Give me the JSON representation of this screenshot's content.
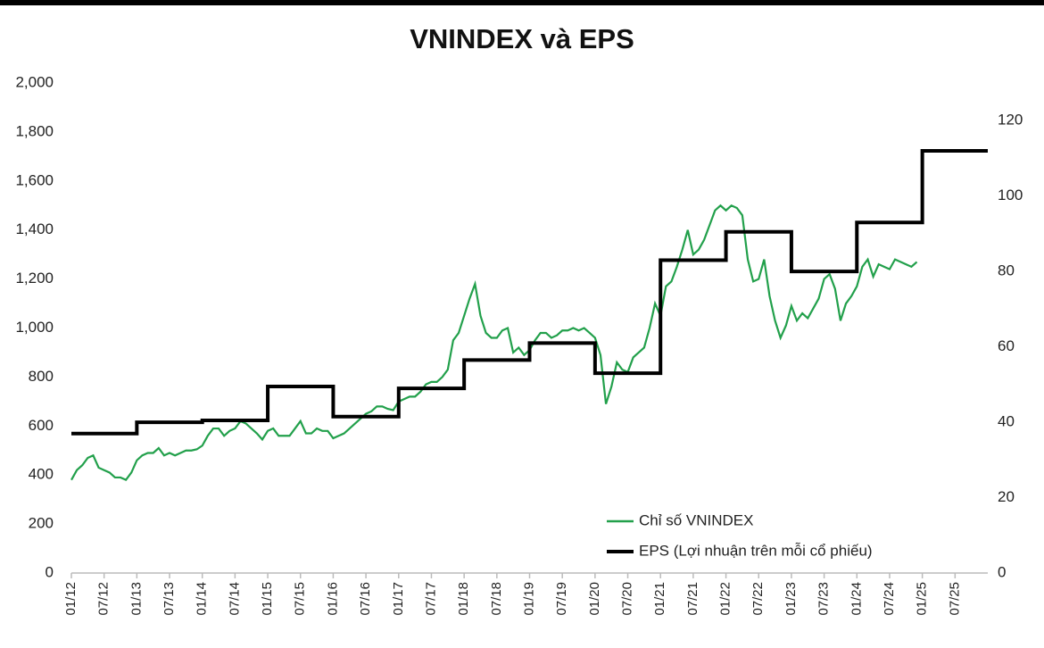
{
  "chart_data": {
    "type": "line",
    "title": "VNINDEX và EPS",
    "categories": [
      "01/12",
      null,
      null,
      null,
      null,
      null,
      "07/12",
      null,
      null,
      null,
      null,
      null,
      "01/13",
      null,
      null,
      null,
      null,
      null,
      "07/13",
      null,
      null,
      null,
      null,
      null,
      "01/14",
      null,
      null,
      null,
      null,
      null,
      "07/14",
      null,
      null,
      null,
      null,
      null,
      "01/15",
      null,
      null,
      null,
      null,
      null,
      "07/15",
      null,
      null,
      null,
      null,
      null,
      "01/16",
      null,
      null,
      null,
      null,
      null,
      "07/16",
      null,
      null,
      null,
      null,
      null,
      "01/17",
      null,
      null,
      null,
      null,
      null,
      "07/17",
      null,
      null,
      null,
      null,
      null,
      "01/18",
      null,
      null,
      null,
      null,
      null,
      "07/18",
      null,
      null,
      null,
      null,
      null,
      "01/19",
      null,
      null,
      null,
      null,
      null,
      "07/19",
      null,
      null,
      null,
      null,
      null,
      "01/20",
      null,
      null,
      null,
      null,
      null,
      "07/20",
      null,
      null,
      null,
      null,
      null,
      "01/21",
      null,
      null,
      null,
      null,
      null,
      "07/21",
      null,
      null,
      null,
      null,
      null,
      "01/22",
      null,
      null,
      null,
      null,
      null,
      "07/22",
      null,
      null,
      null,
      null,
      null,
      "01/23",
      null,
      null,
      null,
      null,
      null,
      "07/23",
      null,
      null,
      null,
      null,
      null,
      "01/24",
      null,
      null,
      null,
      null,
      null,
      "07/24",
      null,
      null,
      null,
      null,
      null,
      "01/25",
      null,
      null,
      null,
      null,
      null,
      "07/25",
      null,
      null,
      null,
      null,
      null,
      null
    ],
    "series": [
      {
        "name": "Chỉ số VNINDEX",
        "color": "#22a04b",
        "values": [
          380,
          420,
          440,
          470,
          480,
          430,
          420,
          410,
          390,
          390,
          380,
          410,
          460,
          480,
          490,
          490,
          510,
          480,
          490,
          480,
          490,
          500,
          500,
          505,
          520,
          560,
          590,
          590,
          560,
          580,
          590,
          620,
          610,
          590,
          570,
          545,
          580,
          590,
          560,
          560,
          560,
          590,
          620,
          570,
          570,
          590,
          580,
          580,
          550,
          560,
          570,
          590,
          610,
          630,
          650,
          660,
          680,
          680,
          670,
          665,
          700,
          710,
          720,
          720,
          740,
          770,
          780,
          780,
          800,
          830,
          950,
          980,
          1050,
          1120,
          1180,
          1050,
          980,
          960,
          960,
          990,
          1000,
          900,
          920,
          890,
          910,
          950,
          980,
          980,
          960,
          970,
          990,
          990,
          1000,
          990,
          1000,
          980,
          960,
          890,
          690,
          760,
          860,
          830,
          820,
          880,
          900,
          920,
          1000,
          1100,
          1050,
          1170,
          1190,
          1250,
          1320,
          1400,
          1300,
          1320,
          1360,
          1420,
          1480,
          1500,
          1480,
          1500,
          1490,
          1460,
          1280,
          1190,
          1200,
          1280,
          1130,
          1030,
          960,
          1010,
          1090,
          1030,
          1060,
          1040,
          1080,
          1120,
          1200,
          1220,
          1160,
          1030,
          1100,
          1130,
          1170,
          1250,
          1280,
          1210,
          1260,
          1250,
          1240,
          1280,
          1270,
          1260,
          1250,
          1270,
          null,
          null,
          null,
          null,
          null,
          null,
          null,
          null,
          null,
          null,
          null,
          null,
          null
        ]
      },
      {
        "name": "EPS (Lợi nhuận trên mỗi cổ phiếu)",
        "color": "#000000",
        "axis": "y2",
        "step": true,
        "values": [
          37,
          37,
          37,
          37,
          37,
          37,
          37,
          37,
          37,
          37,
          37,
          37,
          40,
          40,
          40,
          40,
          40,
          40,
          40,
          40,
          40,
          40,
          40,
          40,
          40.5,
          40.5,
          40.5,
          40.5,
          40.5,
          40.5,
          40.5,
          40.5,
          40.5,
          40.5,
          40.5,
          40.5,
          49.5,
          49.5,
          49.5,
          49.5,
          49.5,
          49.5,
          49.5,
          49.5,
          49.5,
          49.5,
          49.5,
          49.5,
          41.5,
          41.5,
          41.5,
          41.5,
          41.5,
          41.5,
          41.5,
          41.5,
          41.5,
          41.5,
          41.5,
          41.5,
          49,
          49,
          49,
          49,
          49,
          49,
          49,
          49,
          49,
          49,
          49,
          49,
          56.5,
          56.5,
          56.5,
          56.5,
          56.5,
          56.5,
          56.5,
          56.5,
          56.5,
          56.5,
          56.5,
          56.5,
          61,
          61,
          61,
          61,
          61,
          61,
          61,
          61,
          61,
          61,
          61,
          61,
          53,
          53,
          53,
          53,
          53,
          53,
          53,
          53,
          53,
          53,
          53,
          53,
          83,
          83,
          83,
          83,
          83,
          83,
          83,
          83,
          83,
          83,
          83,
          83,
          90.5,
          90.5,
          90.5,
          90.5,
          90.5,
          90.5,
          90.5,
          90.5,
          90.5,
          90.5,
          90.5,
          90.5,
          80,
          80,
          80,
          80,
          80,
          80,
          80,
          80,
          80,
          80,
          80,
          80,
          93,
          93,
          93,
          93,
          93,
          93,
          93,
          93,
          93,
          93,
          93,
          93,
          112,
          112,
          112,
          112,
          112,
          112,
          112,
          112,
          112,
          112,
          112,
          112,
          112
        ]
      }
    ],
    "ylim": [
      0,
      2000
    ],
    "yticks": [
      0,
      200,
      400,
      600,
      800,
      {
        "value": 1000,
        "label": "1,000"
      },
      {
        "value": 1200,
        "label": "1,200"
      },
      {
        "value": 1400,
        "label": "1,400"
      },
      {
        "value": 1600,
        "label": "1,600"
      },
      {
        "value": 1800,
        "label": "1,800"
      },
      {
        "value": 2000,
        "label": "2,000"
      }
    ],
    "y2lim": [
      0,
      130
    ],
    "y2ticks": [
      0,
      20,
      40,
      60,
      80,
      100,
      120
    ],
    "legend": "lower right"
  }
}
